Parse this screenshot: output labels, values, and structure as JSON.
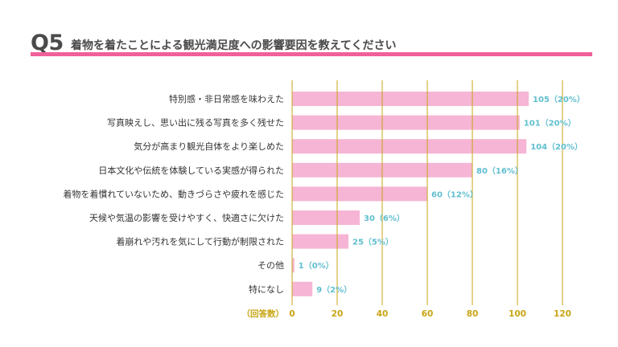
{
  "header": {
    "q_num": "Q5",
    "title": "着物を着たことによる観光満足度への影響要因を教えてください"
  },
  "colors": {
    "bar": "#f6b5d4",
    "accent": "#f0609a",
    "grid": "#c8a514",
    "value_label": "#5fbfcf"
  },
  "chart_data": {
    "type": "bar",
    "orientation": "horizontal",
    "xlabel": "（回答数）",
    "xlim": [
      0,
      120
    ],
    "xticks": [
      0,
      20,
      40,
      60,
      80,
      100,
      120
    ],
    "categories": [
      "特別感・非日常感を味わえた",
      "写真映えし、思い出に残る写真を多く残せた",
      "気分が高まり観光自体をより楽しめた",
      "日本文化や伝統を体験している実感が得られた",
      "着物を着慣れていないため、動きづらさや疲れを感じた",
      "天候や気温の影響を受けやすく、快適さに欠けた",
      "着崩れや汚れを気にして行動が制限された",
      "その他",
      "特になし"
    ],
    "values": [
      105,
      101,
      104,
      80,
      60,
      30,
      25,
      1,
      9
    ],
    "data_labels": [
      "105（20%）",
      "101（20%）",
      "104（20%）",
      "80（16%）",
      "60（12%）",
      "30（6%）",
      "25（5%）",
      "1（0%）",
      "9（2%）"
    ],
    "grid": true
  }
}
